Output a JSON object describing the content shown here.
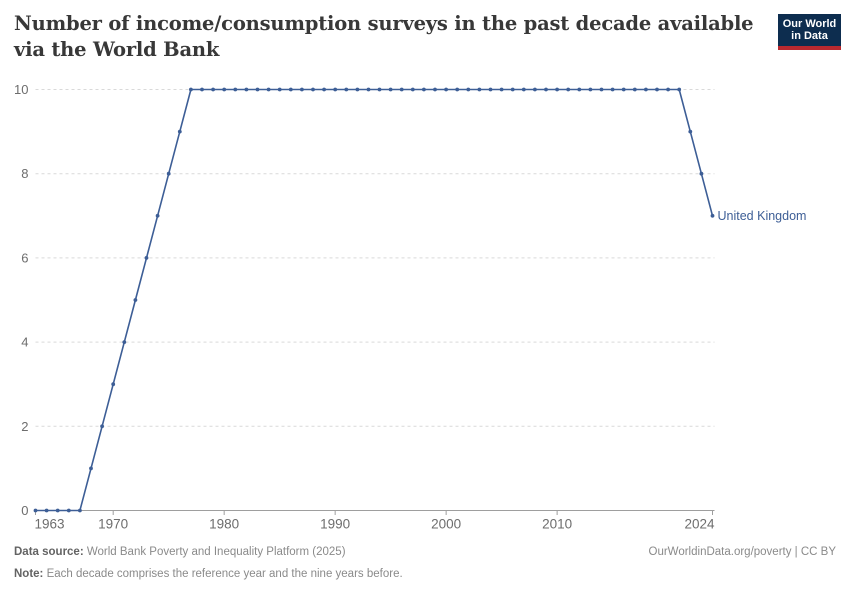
{
  "header": {
    "title": "Number of income/consumption surveys in the past decade available via the World Bank",
    "logo_line1": "Our World",
    "logo_line2": "in Data"
  },
  "chart_data": {
    "type": "line",
    "title": "Number of income/consumption surveys in the past decade available via the World Bank",
    "xlabel": "",
    "ylabel": "",
    "xlim": [
      1963,
      2024
    ],
    "ylim": [
      0,
      10
    ],
    "xticks": [
      1963,
      1970,
      1980,
      1990,
      2000,
      2010,
      2024
    ],
    "yticks": [
      0,
      2,
      4,
      6,
      8,
      10
    ],
    "grid": "horizontal-dashed",
    "legend_position": "end-of-line-label",
    "series": [
      {
        "name": "United Kingdom",
        "color": "#3d5e96",
        "x": [
          1963,
          1964,
          1965,
          1966,
          1967,
          1968,
          1969,
          1970,
          1971,
          1972,
          1973,
          1974,
          1975,
          1976,
          1977,
          1978,
          1979,
          1980,
          1981,
          1982,
          1983,
          1984,
          1985,
          1986,
          1987,
          1988,
          1989,
          1990,
          1991,
          1992,
          1993,
          1994,
          1995,
          1996,
          1997,
          1998,
          1999,
          2000,
          2001,
          2002,
          2003,
          2004,
          2005,
          2006,
          2007,
          2008,
          2009,
          2010,
          2011,
          2012,
          2013,
          2014,
          2015,
          2016,
          2017,
          2018,
          2019,
          2020,
          2021,
          2022,
          2023,
          2024
        ],
        "values": [
          0,
          0,
          0,
          0,
          0,
          1,
          2,
          3,
          4,
          5,
          6,
          7,
          8,
          9,
          10,
          10,
          10,
          10,
          10,
          10,
          10,
          10,
          10,
          10,
          10,
          10,
          10,
          10,
          10,
          10,
          10,
          10,
          10,
          10,
          10,
          10,
          10,
          10,
          10,
          10,
          10,
          10,
          10,
          10,
          10,
          10,
          10,
          10,
          10,
          10,
          10,
          10,
          10,
          10,
          10,
          10,
          10,
          10,
          10,
          9,
          8,
          7
        ]
      }
    ]
  },
  "footer": {
    "datasource_label": "Data source:",
    "datasource_text": " World Bank Poverty and Inequality Platform (2025)",
    "note_label": "Note:",
    "note_text": " Each decade comprises the reference year and the nine years before.",
    "attribution": "OurWorldinData.org/poverty | CC BY"
  },
  "colors": {
    "line": "#3d5e96",
    "grid": "#d9d9d9",
    "axis": "#9e9e9e",
    "tick_label": "#6d6d6d",
    "title": "#383838",
    "footer_text": "#8a8a8a",
    "logo_bg": "#0d2d4f",
    "logo_red": "#b9292f"
  }
}
